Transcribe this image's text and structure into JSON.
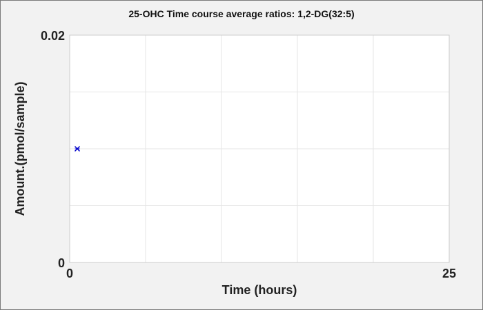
{
  "chart_data": {
    "type": "scatter",
    "title": "25-OHC Time course average ratios: 1,2-DG(32:5)",
    "xlabel": "Time (hours)",
    "ylabel": "Amount.(pmol/sample)",
    "xlim": [
      0,
      25
    ],
    "ylim": [
      0,
      0.02
    ],
    "x_ticks": [
      "0",
      "25"
    ],
    "y_ticks": [
      "0",
      "0.02"
    ],
    "x_gridlines": [
      5,
      10,
      15,
      20,
      25
    ],
    "y_gridlines": [
      0.005,
      0.01,
      0.015,
      0.02
    ],
    "grid": true,
    "series": [
      {
        "color": "#0000cc",
        "marker": "x",
        "points": [
          {
            "x": 0.5,
            "y": 0.01
          }
        ]
      }
    ]
  }
}
